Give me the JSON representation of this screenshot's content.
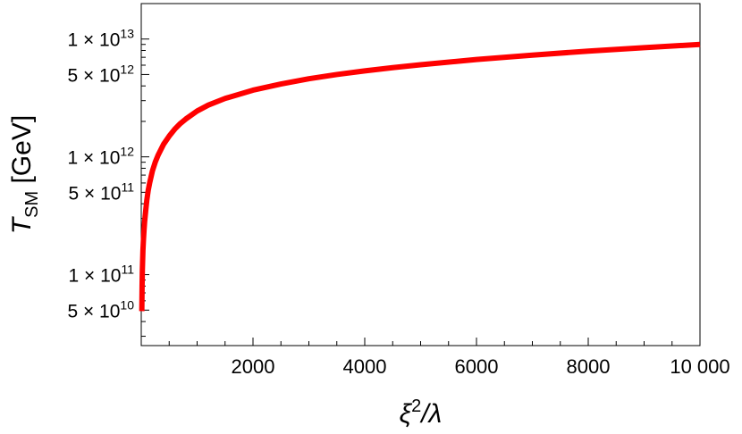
{
  "chart_data": {
    "type": "line",
    "title": "",
    "xlabel": {
      "base": "ξ",
      "sup": "2",
      "rest": "/λ"
    },
    "ylabel": {
      "base": "T",
      "sub": "SM",
      "rest": " [GeV]"
    },
    "x_scale": "linear",
    "y_scale": "log",
    "xlim": [
      0,
      10000
    ],
    "ylim": [
      25000000000.0,
      20000000000000.0
    ],
    "x_ticks": [
      {
        "value": 2000,
        "label": "2000"
      },
      {
        "value": 4000,
        "label": "4000"
      },
      {
        "value": 6000,
        "label": "6000"
      },
      {
        "value": 8000,
        "label": "8000"
      },
      {
        "value": 10000,
        "label": "10 000"
      }
    ],
    "y_ticks": [
      {
        "value": 50000000000.0,
        "mantissa": "5 × 10",
        "exp": "10"
      },
      {
        "value": 100000000000.0,
        "mantissa": "1 × 10",
        "exp": "11"
      },
      {
        "value": 500000000000.0,
        "mantissa": "5 × 10",
        "exp": "11"
      },
      {
        "value": 1000000000000.0,
        "mantissa": "1 × 10",
        "exp": "12"
      },
      {
        "value": 5000000000000.0,
        "mantissa": "5 × 10",
        "exp": "12"
      },
      {
        "value": 10000000000000.0,
        "mantissa": "1 × 10",
        "exp": "13"
      }
    ],
    "grid": false,
    "series": [
      {
        "color": "#ff0000",
        "x": [
          10,
          15,
          20,
          30,
          40,
          50,
          60,
          80,
          100,
          125,
          150,
          200,
          250,
          300,
          400,
          500,
          600,
          700,
          800,
          1000,
          1200,
          1500,
          2000,
          2500,
          3000,
          3500,
          4000,
          4500,
          5000,
          6000,
          7000,
          8000,
          9000,
          10000
        ],
        "y": [
          49000000000.0,
          80000000000.0,
          110000000000.0,
          160000000000.0,
          200000000000.0,
          240000000000.0,
          280000000000.0,
          350000000000.0,
          430000000000.0,
          520000000000.0,
          600000000000.0,
          760000000000.0,
          900000000000.0,
          1030000000000.0,
          1280000000000.0,
          1500000000000.0,
          1720000000000.0,
          1920000000000.0,
          2100000000000.0,
          2450000000000.0,
          2750000000000.0,
          3130000000000.0,
          3680000000000.0,
          4150000000000.0,
          4600000000000.0,
          5000000000000.0,
          5370000000000.0,
          5720000000000.0,
          6050000000000.0,
          6700000000000.0,
          7300000000000.0,
          7900000000000.0,
          8450000000000.0,
          9000000000000.0
        ]
      }
    ]
  }
}
